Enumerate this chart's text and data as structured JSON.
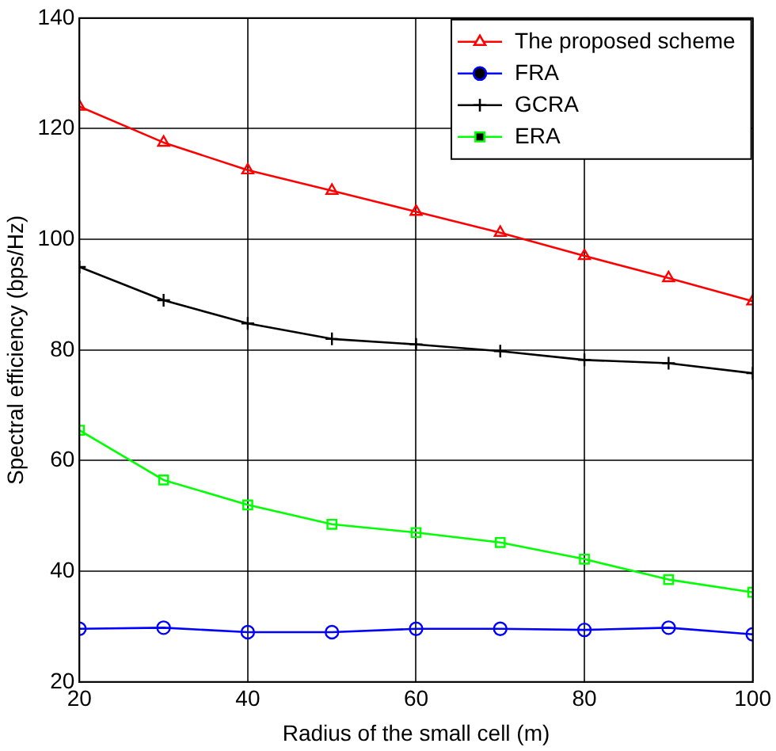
{
  "chart_data": {
    "type": "line",
    "xlabel": "Radius of the small cell (m)",
    "ylabel": "Spectral efficiency (bps/Hz)",
    "x": [
      20,
      30,
      40,
      50,
      60,
      70,
      80,
      90,
      100
    ],
    "xlim": [
      20,
      100
    ],
    "xticks": [
      20,
      40,
      60,
      80,
      100
    ],
    "ylim": [
      20,
      140
    ],
    "yticks": [
      20,
      40,
      60,
      80,
      100,
      120,
      140
    ],
    "grid": true,
    "legend": "top right",
    "line_style": "solid",
    "series": [
      {
        "name": "The proposed scheme",
        "color": "#ff0000",
        "marker": "triangle",
        "values": [
          124,
          117.5,
          112.5,
          108.8,
          105,
          101.2,
          97,
          93,
          88.8
        ]
      },
      {
        "name": "FRA",
        "color": "#0000ff",
        "marker": "circle",
        "values": [
          29.6,
          29.8,
          29,
          29,
          29.6,
          29.6,
          29.4,
          29.8,
          28.6
        ]
      },
      {
        "name": "GCRA",
        "color": "#000000",
        "marker": "cross",
        "values": [
          95,
          89,
          84.8,
          82,
          81,
          79.8,
          78.2,
          77.6,
          75.8
        ]
      },
      {
        "name": "ERA",
        "color": "#00ff00",
        "marker": "square",
        "values": [
          65.5,
          56.5,
          52,
          48.5,
          47,
          45.2,
          42.2,
          38.5,
          36.2
        ]
      }
    ]
  }
}
